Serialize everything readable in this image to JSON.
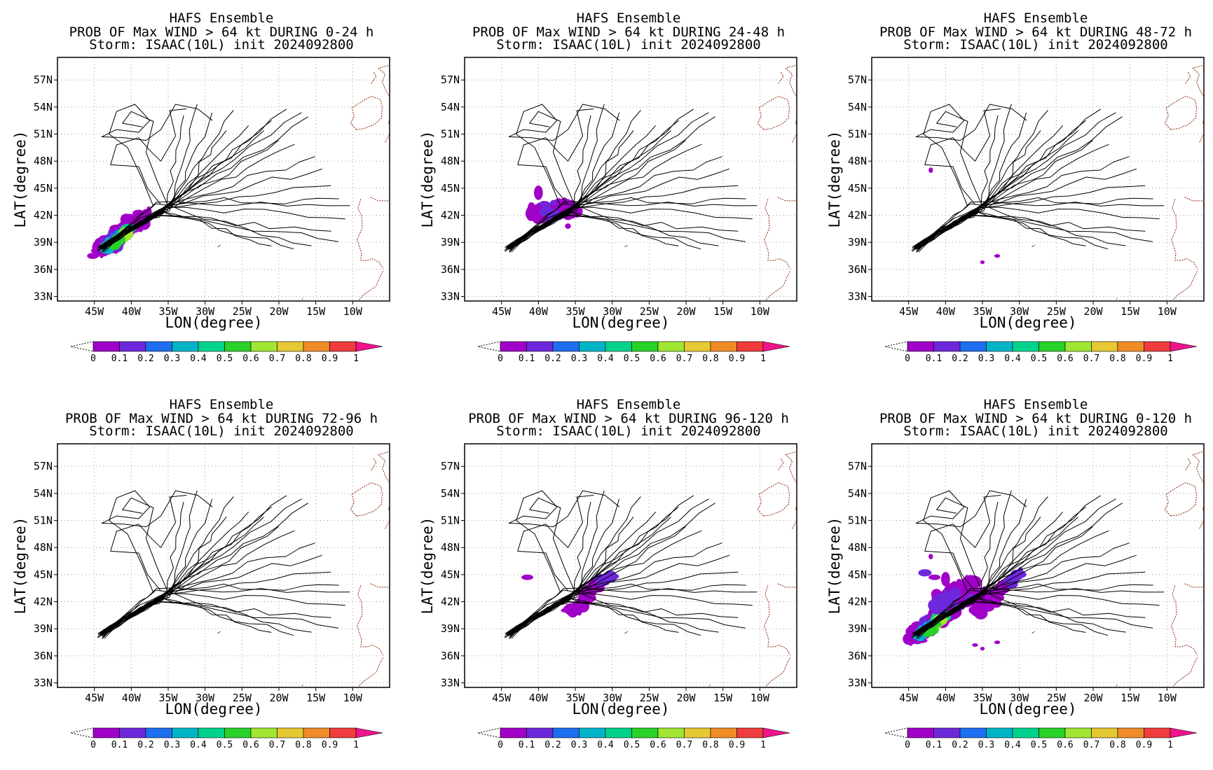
{
  "panels": [
    {
      "title1": "HAFS Ensemble",
      "title2": "PROB OF Max WIND > 64 kt DURING  0-24 h",
      "title3": "Storm: ISAAC(10L) init 2024092800",
      "period": "0-24"
    },
    {
      "title1": "HAFS Ensemble",
      "title2": "PROB OF Max WIND > 64 kt DURING 24-48 h",
      "title3": "Storm: ISAAC(10L) init 2024092800",
      "period": "24-48"
    },
    {
      "title1": "HAFS Ensemble",
      "title2": "PROB OF Max WIND > 64 kt DURING 48-72 h",
      "title3": "Storm: ISAAC(10L) init 2024092800",
      "period": "48-72"
    },
    {
      "title1": "HAFS Ensemble",
      "title2": "PROB OF Max WIND > 64 kt DURING 72-96 h",
      "title3": "Storm: ISAAC(10L) init 2024092800",
      "period": "72-96"
    },
    {
      "title1": "HAFS Ensemble",
      "title2": "PROB OF Max WIND > 64 kt DURING 96-120 h",
      "title3": "Storm: ISAAC(10L) init 2024092800",
      "period": "96-120"
    },
    {
      "title1": "HAFS Ensemble",
      "title2": "PROB OF Max WIND > 64 kt DURING 0-120 h",
      "title3": "Storm: ISAAC(10L) init 2024092800",
      "period": "0-120"
    }
  ],
  "axes": {
    "xlabel": "LON(degree)",
    "ylabel": "LAT(degree)",
    "lon_ticks": [
      -45,
      -40,
      -35,
      -30,
      -25,
      -20,
      -15,
      -10
    ],
    "lon_labels": [
      "45W",
      "40W",
      "35W",
      "30W",
      "25W",
      "20W",
      "15W",
      "10W"
    ],
    "lat_ticks": [
      33,
      36,
      39,
      42,
      45,
      48,
      51,
      54,
      57
    ],
    "lat_labels": [
      "33N",
      "36N",
      "39N",
      "42N",
      "45N",
      "48N",
      "51N",
      "54N",
      "57N"
    ],
    "lon_range": [
      -50,
      -5
    ],
    "lat_range": [
      32.5,
      59.5
    ],
    "grid": true
  },
  "colorbar": {
    "labels": [
      "0",
      "0.1",
      "0.2",
      "0.3",
      "0.4",
      "0.5",
      "0.6",
      "0.7",
      "0.8",
      "0.9",
      "1"
    ],
    "colors": [
      "#a000c8",
      "#6e28dc",
      "#1e6ef0",
      "#00b4c8",
      "#00d28c",
      "#28d228",
      "#a0e632",
      "#e6c832",
      "#f08c28",
      "#f03c3c",
      "#f0148c"
    ]
  },
  "colors": {
    "track": "#000000",
    "coast": "#8b2500",
    "grid": "#999999"
  }
}
